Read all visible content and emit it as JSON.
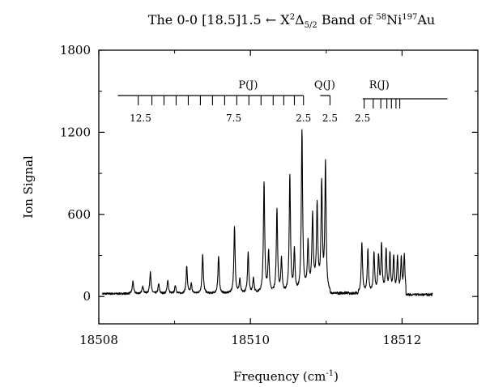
{
  "chart_data": {
    "type": "line",
    "title": {
      "prefix": "The 0-0 [18.5]1.5 ",
      "arrow": "←",
      "mid": " X",
      "sup1": "2",
      "delta": "Δ",
      "sub": "5/2",
      "band": " Band of ",
      "sup2": "58",
      "ni": "Ni",
      "sup3": "197",
      "au": "Au"
    },
    "xlabel": "Frequency (cm",
    "xlabel_sup": "-1",
    "xlabel_close": ")",
    "ylabel": "Ion Signal",
    "xlim": [
      18508,
      18513
    ],
    "ylim": [
      -200,
      1800
    ],
    "xticks": [
      18508,
      18510,
      18512
    ],
    "xtick_labels": [
      "18508",
      "18510",
      "18512"
    ],
    "yticks": [
      0,
      600,
      1200,
      1800
    ],
    "ytick_labels": [
      "0",
      "600",
      "1200",
      "1800"
    ],
    "grid": false,
    "series": [
      {
        "peaks": [
          [
            18508.45,
            90
          ],
          [
            18508.58,
            60
          ],
          [
            18508.68,
            160
          ],
          [
            18508.79,
            70
          ],
          [
            18508.91,
            100
          ],
          [
            18509.01,
            60
          ],
          [
            18509.16,
            200
          ],
          [
            18509.22,
            70
          ],
          [
            18509.37,
            290
          ],
          [
            18509.58,
            270
          ],
          [
            18509.79,
            480
          ],
          [
            18509.86,
            100
          ],
          [
            18509.97,
            300
          ],
          [
            18510.04,
            110
          ],
          [
            18510.18,
            810
          ],
          [
            18510.24,
            300
          ],
          [
            18510.35,
            610
          ],
          [
            18510.41,
            240
          ],
          [
            18510.52,
            850
          ],
          [
            18510.58,
            300
          ],
          [
            18510.68,
            1180
          ],
          [
            18510.76,
            330
          ],
          [
            18510.82,
            500
          ],
          [
            18510.88,
            580
          ],
          [
            18510.94,
            750
          ],
          [
            18510.99,
            920
          ],
          [
            18511.47,
            370
          ],
          [
            18511.55,
            310
          ],
          [
            18511.63,
            290
          ],
          [
            18511.69,
            260
          ],
          [
            18511.73,
            340
          ],
          [
            18511.79,
            310
          ],
          [
            18511.84,
            280
          ],
          [
            18511.89,
            260
          ],
          [
            18511.94,
            250
          ],
          [
            18511.99,
            240
          ],
          [
            18512.03,
            270
          ]
        ]
      }
    ],
    "assignment_ladders": {
      "P": {
        "label": "P(J)",
        "tick_x": [
          18508.52,
          18508.7,
          18508.86,
          18509.02,
          18509.18,
          18509.34,
          18509.5,
          18509.66,
          18509.82,
          18509.98,
          18510.14,
          18510.3,
          18510.44,
          18510.58,
          18510.7
        ],
        "line_start": 18508.25,
        "numbers": [
          {
            "x": 18508.55,
            "text": "12.5"
          },
          {
            "x": 18509.78,
            "text": "7.5"
          },
          {
            "x": 18510.7,
            "text": "2.5"
          }
        ]
      },
      "Q": {
        "label": "Q(J)",
        "tick_x": [
          18511.05
        ],
        "line_start": 18510.92,
        "numbers": [
          {
            "x": 18511.05,
            "text": "2.5"
          }
        ]
      },
      "R": {
        "label": "R(J)",
        "tick_x": [
          18511.5,
          18511.62,
          18511.72,
          18511.8,
          18511.86,
          18511.92,
          18511.97
        ],
        "line_start": 18511.48,
        "line_end": 18512.6,
        "numbers": [
          {
            "x": 18511.48,
            "text": "2.5"
          }
        ]
      }
    }
  }
}
